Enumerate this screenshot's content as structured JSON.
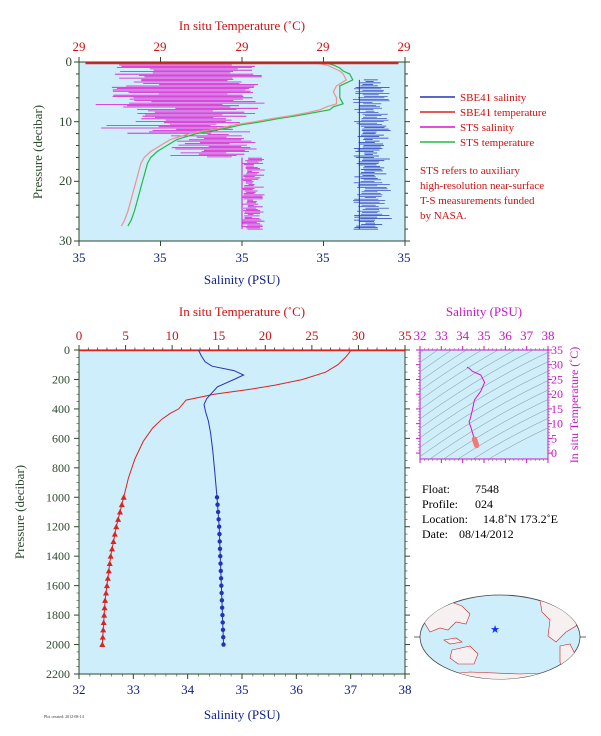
{
  "colors": {
    "plot_bg": "#cdeefa",
    "sbe41_salinity": "#2233bb",
    "sbe41_temperature": "#dd2222",
    "sts_salinity": "#e010d0",
    "sts_temperature": "#22bb44",
    "ts_curve": "#e010d0",
    "axis_red": "#cc1111",
    "axis_green": "#2e4a2e",
    "axis_blue": "#0b1f8a",
    "axis_magenta": "#c21ac2"
  },
  "chart_data": [
    {
      "id": "near-surface-profile",
      "type": "line",
      "title": "",
      "top_axis_label": "In situ Temperature (˚C)",
      "top_tick_labels": [
        "29",
        "29",
        "29",
        "29",
        "29"
      ],
      "bottom_axis_label": "Salinity (PSU)",
      "bottom_tick_labels": [
        "35",
        "35",
        "35",
        "35",
        "35"
      ],
      "ylabel": "Pressure (decibar)",
      "y_tick_labels": [
        "0",
        "10",
        "20",
        "30"
      ],
      "ylim": [
        30,
        0
      ],
      "legend": [
        {
          "name": "SBE41 salinity",
          "color": "#2233bb"
        },
        {
          "name": "SBE41 temperature",
          "color": "#dd2222"
        },
        {
          "name": "STS salinity",
          "color": "#e010d0"
        },
        {
          "name": "STS temperature",
          "color": "#22bb44"
        }
      ],
      "note_lines": [
        "STS refers to auxiliary",
        "high-resolution near-surface",
        "T-S measurements funded",
        "by NASA."
      ],
      "series": [
        {
          "key": "sts_temperature",
          "color": "#22bb44",
          "lx": [
            0.76,
            0.78,
            0.8,
            0.81,
            0.83,
            0.84,
            0.8,
            0.8,
            0.8,
            0.81,
            0.78,
            0.77,
            0.72,
            0.67,
            0.61,
            0.56,
            0.5,
            0.46,
            0.41,
            0.36,
            0.3,
            0.27,
            0.24,
            0.22,
            0.21,
            0.2,
            0.19,
            0.18,
            0.17,
            0.16,
            0.15
          ],
          "p": [
            0.2,
            0.5,
            1,
            1.5,
            2,
            3,
            4,
            5,
            6,
            7,
            7.5,
            8,
            8.5,
            9,
            9.5,
            10,
            10.5,
            11,
            11.5,
            12,
            13,
            14,
            15,
            16,
            17,
            19,
            21,
            23,
            25,
            26.5,
            27.5
          ]
        },
        {
          "key": "sts_temperature_shadow",
          "color": "#f09090",
          "lx": [
            0.73,
            0.76,
            0.78,
            0.8,
            0.81,
            0.82,
            0.79,
            0.78,
            0.79,
            0.79,
            0.76,
            0.74,
            0.7,
            0.65,
            0.59,
            0.54,
            0.48,
            0.44,
            0.39,
            0.34,
            0.28,
            0.25,
            0.22,
            0.2,
            0.19,
            0.18,
            0.17,
            0.16,
            0.15,
            0.14,
            0.13
          ],
          "p": [
            0.2,
            0.5,
            1,
            1.5,
            2,
            3,
            4,
            5,
            6,
            7,
            7.5,
            8,
            8.5,
            9,
            9.5,
            10,
            10.5,
            11,
            11.5,
            12,
            13,
            14,
            15,
            16,
            17,
            19,
            21,
            23,
            25,
            26.5,
            27.5
          ]
        }
      ],
      "sbe41_temperature_lx": [
        0.02,
        0.98
      ],
      "sbe41_temperature_p": [
        0.05,
        0.05
      ],
      "sts_salinity_spikes": {
        "p_range": [
          0.5,
          28
        ],
        "cluster_lx": [
          [
            0.1,
            0.56
          ],
          [
            0.3,
            0.5
          ],
          [
            0.5,
            0.56
          ],
          [
            0.05,
            0.45
          ]
        ]
      },
      "sbe41_salinity_spikes": {
        "p_range": [
          3,
          28
        ],
        "cluster_lx": [
          [
            0.85,
            0.97
          ]
        ]
      }
    },
    {
      "id": "full-profile",
      "type": "line",
      "title": "",
      "top_axis_label": "In situ Temperature (˚C)",
      "bottom_axis_label": "Salinity (PSU)",
      "ylabel": "Pressure (decibar)",
      "xlim_temperature": [
        0,
        35
      ],
      "x_tick_labels_temperature": [
        "0",
        "5",
        "10",
        "15",
        "20",
        "25",
        "30",
        "35"
      ],
      "xlim_salinity": [
        32,
        38
      ],
      "x_tick_labels_salinity": [
        "32",
        "33",
        "34",
        "35",
        "36",
        "37",
        "38"
      ],
      "ylim": [
        2200,
        0
      ],
      "y_tick_labels": [
        "0",
        "200",
        "400",
        "600",
        "800",
        "1000",
        "1200",
        "1400",
        "1600",
        "1800",
        "2000",
        "2200"
      ],
      "series": [
        {
          "name": "Temperature",
          "color": "#dd2222",
          "x": [
            29.2,
            29.0,
            28.6,
            27.8,
            26.5,
            24.0,
            21.0,
            18.0,
            14.5,
            11.5,
            10.7,
            9.8,
            8.9,
            7.9,
            6.9,
            6.0,
            5.3,
            4.8
          ],
          "y": [
            0,
            20,
            50,
            100,
            150,
            200,
            240,
            270,
            300,
            340,
            400,
            430,
            470,
            530,
            620,
            740,
            870,
            1000
          ]
        },
        {
          "name": "Temperature deep",
          "color": "#dd2222",
          "marker": "triangle",
          "x": [
            4.8,
            4.6,
            4.4,
            4.2,
            4.0,
            3.85,
            3.7,
            3.55,
            3.4,
            3.3,
            3.2,
            3.1,
            3.0,
            2.9,
            2.8,
            2.75,
            2.7,
            2.65,
            2.6,
            2.55,
            2.5
          ],
          "y": [
            1000,
            1050,
            1100,
            1150,
            1200,
            1250,
            1300,
            1350,
            1400,
            1450,
            1500,
            1550,
            1600,
            1650,
            1700,
            1750,
            1800,
            1850,
            1900,
            1950,
            2000
          ]
        },
        {
          "name": "Salinity",
          "color": "#2233bb",
          "x": [
            34.2,
            34.25,
            34.32,
            34.45,
            34.85,
            35.03,
            34.85,
            34.55,
            34.45,
            34.35,
            34.3,
            34.33,
            34.38,
            34.42,
            34.46,
            34.5,
            34.54
          ],
          "y": [
            0,
            40,
            80,
            110,
            140,
            170,
            200,
            250,
            290,
            330,
            370,
            420,
            480,
            560,
            680,
            830,
            1000
          ]
        },
        {
          "name": "Salinity deep",
          "color": "#2233bb",
          "marker": "circle",
          "x": [
            34.54,
            34.55,
            34.56,
            34.57,
            34.58,
            34.585,
            34.59,
            34.595,
            34.6,
            34.605,
            34.61,
            34.615,
            34.62,
            34.625,
            34.63,
            34.635,
            34.64,
            34.645,
            34.65,
            34.655,
            34.66
          ],
          "y": [
            1000,
            1050,
            1100,
            1150,
            1200,
            1250,
            1300,
            1350,
            1400,
            1450,
            1500,
            1550,
            1600,
            1650,
            1700,
            1750,
            1800,
            1850,
            1900,
            1950,
            2000
          ]
        }
      ]
    },
    {
      "id": "ts-diagram",
      "type": "line",
      "title": "",
      "top_axis_label": "Salinity (PSU)",
      "xlim": [
        32,
        38
      ],
      "x_tick_labels": [
        "32",
        "33",
        "34",
        "35",
        "36",
        "37",
        "38"
      ],
      "right_axis_label": "In situ Temperature (˚C)",
      "ylim": [
        -2,
        35
      ],
      "y_tick_labels": [
        "0",
        "5",
        "10",
        "15",
        "20",
        "25",
        "30",
        "35"
      ],
      "series": [
        {
          "name": "T-S",
          "color": "#e010d0",
          "x": [
            34.2,
            34.3,
            34.45,
            34.85,
            35.03,
            34.85,
            34.55,
            34.45,
            34.35,
            34.3,
            34.33,
            34.38,
            34.42,
            34.46,
            34.5,
            34.54,
            34.6,
            34.66
          ],
          "y": [
            29.2,
            28.8,
            27.8,
            26.5,
            24.0,
            21.0,
            18.0,
            14.5,
            11.5,
            10.7,
            9.8,
            8.9,
            7.9,
            6.9,
            6.0,
            4.8,
            3.4,
            2.5
          ]
        }
      ]
    }
  ],
  "info": {
    "float_label": "Float:",
    "float_value": "7548",
    "profile_label": "Profile:",
    "profile_value": "024",
    "location_label": "Location:",
    "location_value": "14.8˚N  173.2˚E",
    "date_label": "Date:",
    "date_value": "08/14/2012"
  },
  "map": {
    "marker_color": "#1030ff",
    "land_color": "#f6f0f0",
    "coast_color": "#cc2222",
    "ocean_color": "#cdeefa"
  },
  "footnote": "Plot created: 2012-08-14"
}
